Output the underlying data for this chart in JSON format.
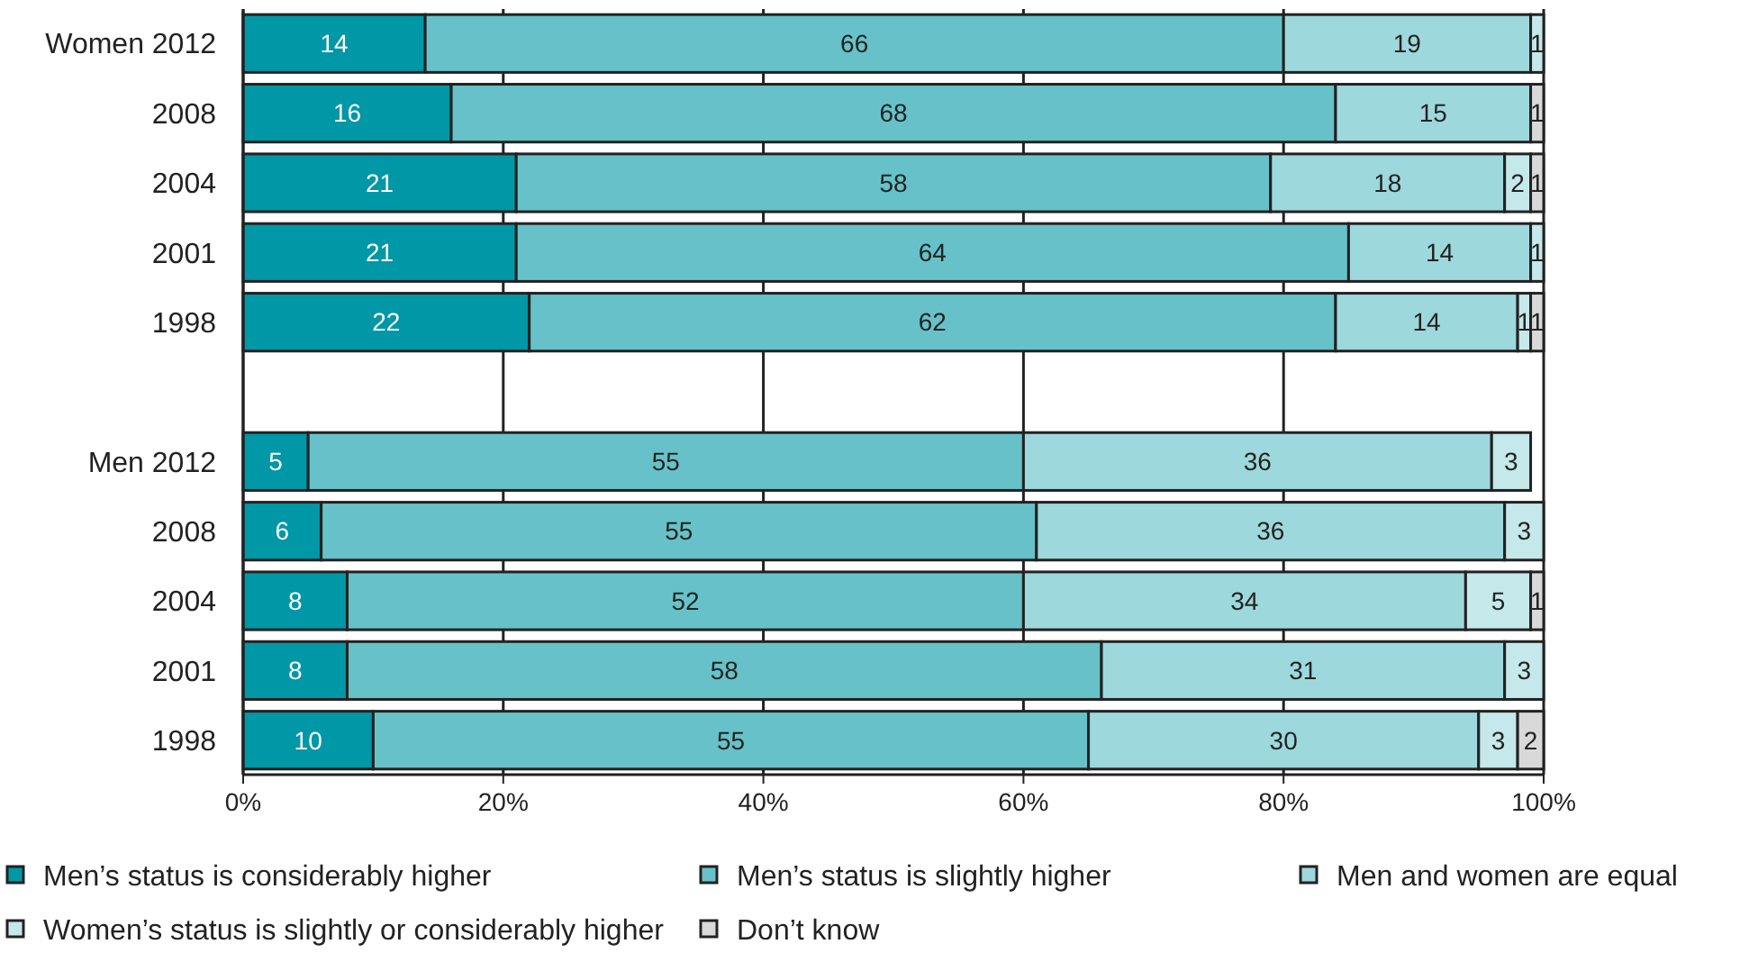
{
  "chart_data": {
    "type": "bar",
    "orientation": "horizontal",
    "stacked": true,
    "categories": [
      "Women 2012",
      "2008",
      "2004",
      "2001",
      "1998",
      null,
      "Men 2012",
      "2008",
      "2004",
      "2001",
      "1998"
    ],
    "series": [
      {
        "name": "Men’s status is considerably higher",
        "color": "#0097a7",
        "values": [
          14,
          16,
          21,
          21,
          22,
          null,
          5,
          6,
          8,
          8,
          10
        ]
      },
      {
        "name": "Men’s status is slightly higher",
        "color": "#66c2c8",
        "values": [
          66,
          68,
          58,
          64,
          62,
          null,
          55,
          55,
          52,
          58,
          55
        ]
      },
      {
        "name": "Men and women are equal",
        "color": "#9dd8dc",
        "values": [
          19,
          15,
          18,
          14,
          14,
          null,
          36,
          36,
          34,
          31,
          30
        ]
      },
      {
        "name": "Women’s status is slightly or considerably higher",
        "color": "#c5e8ea",
        "values": [
          1,
          null,
          2,
          1,
          1,
          null,
          3,
          3,
          5,
          3,
          3
        ]
      },
      {
        "name": "Don’t know",
        "color": "#d9d9d9",
        "values": [
          null,
          1,
          1,
          null,
          1,
          null,
          null,
          null,
          1,
          null,
          2
        ]
      }
    ],
    "xlim": [
      0,
      100
    ],
    "xticks": [
      {
        "value": 0,
        "label": "0%"
      },
      {
        "value": 20,
        "label": "20%"
      },
      {
        "value": 40,
        "label": "40%"
      },
      {
        "value": 60,
        "label": "60%"
      },
      {
        "value": 80,
        "label": "80%"
      },
      {
        "value": 100,
        "label": "100%"
      }
    ],
    "grid": "x",
    "legend": "bottom",
    "data_labels": true
  }
}
